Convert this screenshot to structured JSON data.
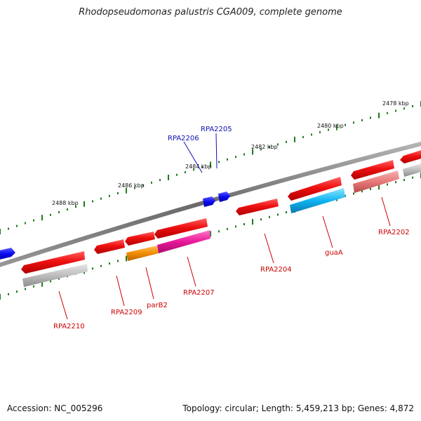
{
  "title": "Rhodopseudomonas palustris CGA009, complete genome",
  "footer": {
    "accession": "Accession: NC_005296",
    "summary": "Topology: circular; Length: 5,459,213 bp; Genes: 4,872"
  },
  "colors": {
    "backbone": "#7a7a7a",
    "tick": "#1f7a1f",
    "red_feature": "#e31010",
    "blue_feature": "#0a0af0",
    "grey_feature": "#b4b4b4",
    "orange_feature": "#f28c00",
    "magenta_feature": "#e8189a",
    "cyan_feature": "#10b4f0",
    "salmon_feature": "#e87878",
    "label_red": "#cc0000",
    "label_blue": "#1010b0"
  },
  "ticks": [
    {
      "label": "2488 kbp"
    },
    {
      "label": "2486 kbp"
    },
    {
      "label": "2484 kbp"
    },
    {
      "label": "2482 kbp"
    },
    {
      "label": "2480 kbp"
    },
    {
      "label": "2478 kbp"
    }
  ],
  "gene_labels": [
    {
      "name": "RPA2206",
      "color": "blue"
    },
    {
      "name": "RPA2205",
      "color": "blue"
    },
    {
      "name": "RPA2202",
      "color": "red"
    },
    {
      "name": "guaA",
      "color": "red"
    },
    {
      "name": "RPA2204",
      "color": "red"
    },
    {
      "name": "RPA2207",
      "color": "red"
    },
    {
      "name": "parB2",
      "color": "red"
    },
    {
      "name": "RPA2209",
      "color": "red"
    },
    {
      "name": "RPA2210",
      "color": "red"
    }
  ]
}
